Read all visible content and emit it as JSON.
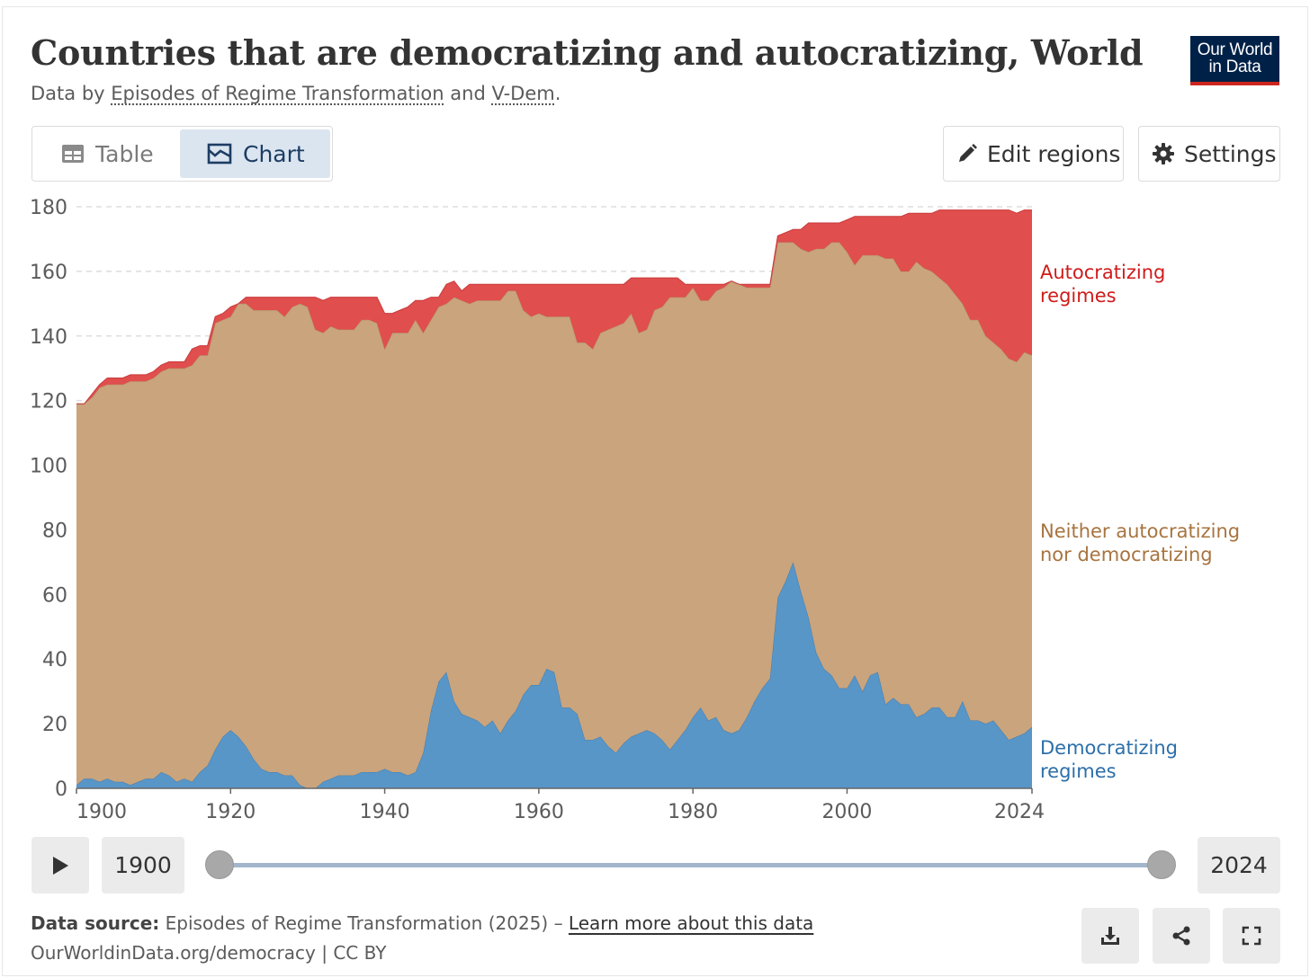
{
  "header": {
    "title": "Countries that are democratizing and autocratizing, World",
    "subtitle_prefix": "Data by ",
    "subtitle_link1": "Episodes of Regime Transformation",
    "subtitle_and": " and ",
    "subtitle_link2": "V-Dem",
    "subtitle_suffix": ".",
    "logo_line1": "Our World",
    "logo_line2": "in Data"
  },
  "tabs": {
    "table_label": "Table",
    "chart_label": "Chart",
    "active": "chart"
  },
  "actions": {
    "edit_regions_label": "Edit regions",
    "settings_label": "Settings"
  },
  "timeline": {
    "start_year": "1900",
    "end_year": "2024"
  },
  "footer": {
    "source_label": "Data source:",
    "source_text": " Episodes of Regime Transformation (2025) – ",
    "learn_more": "Learn more about this data",
    "url_line": "OurWorldinData.org/democracy | CC BY"
  },
  "icons": [
    "table-icon",
    "chart-icon",
    "pencil-icon",
    "gear-icon",
    "play-icon",
    "download-icon",
    "share-icon",
    "fullscreen-icon"
  ],
  "colors": {
    "autocratizing": "#e04e4e",
    "neither": "#c9a47c",
    "democratizing": "#5896c8",
    "grid": "#dddddd",
    "accent": "#1d3d63"
  },
  "chart_data": {
    "type": "area",
    "stacked": true,
    "title": "Countries that are democratizing and autocratizing, World",
    "x": [
      1900,
      1901,
      1902,
      1903,
      1904,
      1905,
      1906,
      1907,
      1908,
      1909,
      1910,
      1911,
      1912,
      1913,
      1914,
      1915,
      1916,
      1917,
      1918,
      1919,
      1920,
      1921,
      1922,
      1923,
      1924,
      1925,
      1926,
      1927,
      1928,
      1929,
      1930,
      1931,
      1932,
      1933,
      1934,
      1935,
      1936,
      1937,
      1938,
      1939,
      1940,
      1941,
      1942,
      1943,
      1944,
      1945,
      1946,
      1947,
      1948,
      1949,
      1950,
      1951,
      1952,
      1953,
      1954,
      1955,
      1956,
      1957,
      1958,
      1959,
      1960,
      1961,
      1962,
      1963,
      1964,
      1965,
      1966,
      1967,
      1968,
      1969,
      1970,
      1971,
      1972,
      1973,
      1974,
      1975,
      1976,
      1977,
      1978,
      1979,
      1980,
      1981,
      1982,
      1983,
      1984,
      1985,
      1986,
      1987,
      1988,
      1989,
      1990,
      1991,
      1992,
      1993,
      1994,
      1995,
      1996,
      1997,
      1998,
      1999,
      2000,
      2001,
      2002,
      2003,
      2004,
      2005,
      2006,
      2007,
      2008,
      2009,
      2010,
      2011,
      2012,
      2013,
      2014,
      2015,
      2016,
      2017,
      2018,
      2019,
      2020,
      2021,
      2022,
      2023,
      2024
    ],
    "series": [
      {
        "name": "Democratizing regimes",
        "values": [
          1,
          3,
          3,
          2,
          3,
          2,
          2,
          1,
          2,
          3,
          3,
          5,
          4,
          2,
          3,
          2,
          5,
          7,
          12,
          16,
          18,
          16,
          13,
          9,
          6,
          5,
          5,
          4,
          4,
          1,
          0,
          0,
          2,
          3,
          4,
          4,
          4,
          5,
          5,
          5,
          6,
          5,
          5,
          4,
          5,
          11,
          24,
          33,
          36,
          27,
          23,
          22,
          21,
          19,
          21,
          17,
          21,
          24,
          29,
          32,
          32,
          37,
          36,
          25,
          25,
          23,
          15,
          15,
          16,
          13,
          11,
          14,
          16,
          17,
          18,
          17,
          15,
          12,
          15,
          18,
          22,
          25,
          21,
          22,
          18,
          17,
          18,
          22,
          27,
          31,
          34,
          59,
          64,
          70,
          61,
          53,
          42,
          37,
          35,
          31,
          31,
          35,
          30,
          35,
          36,
          26,
          28,
          26,
          26,
          22,
          23,
          25,
          25,
          22,
          22,
          27,
          21,
          21,
          20,
          21,
          18,
          15,
          16,
          17,
          19
        ],
        "ylabel_text": "Democratizing regimes"
      },
      {
        "name": "Neither autocratizing nor democratizing",
        "values": [
          118,
          116,
          118,
          122,
          122,
          123,
          123,
          125,
          124,
          123,
          124,
          124,
          126,
          128,
          127,
          129,
          129,
          127,
          132,
          129,
          128,
          134,
          137,
          139,
          142,
          143,
          143,
          142,
          145,
          149,
          149,
          142,
          139,
          140,
          138,
          138,
          138,
          140,
          140,
          139,
          130,
          136,
          136,
          137,
          140,
          130,
          121,
          116,
          114,
          125,
          128,
          128,
          130,
          132,
          130,
          134,
          133,
          130,
          119,
          114,
          115,
          109,
          110,
          121,
          121,
          115,
          123,
          121,
          125,
          129,
          132,
          130,
          131,
          124,
          124,
          131,
          134,
          140,
          137,
          134,
          133,
          126,
          130,
          132,
          137,
          140,
          138,
          133,
          128,
          124,
          121,
          110,
          105,
          99,
          106,
          113,
          125,
          130,
          134,
          138,
          135,
          127,
          135,
          130,
          129,
          138,
          136,
          134,
          134,
          141,
          138,
          135,
          133,
          134,
          131,
          123,
          124,
          124,
          120,
          117,
          118,
          118,
          116,
          118,
          115
        ]
      },
      {
        "name": "Autocratizing regimes",
        "values": [
          0,
          0,
          1,
          1,
          2,
          2,
          2,
          2,
          2,
          2,
          2,
          2,
          2,
          2,
          2,
          5,
          3,
          3,
          2,
          2,
          3,
          0,
          2,
          4,
          4,
          4,
          4,
          6,
          3,
          2,
          3,
          10,
          10,
          9,
          10,
          10,
          10,
          7,
          7,
          8,
          11,
          6,
          7,
          8,
          6,
          10,
          7,
          3,
          6,
          5,
          3,
          6,
          5,
          5,
          5,
          5,
          2,
          2,
          8,
          10,
          9,
          10,
          10,
          10,
          10,
          18,
          18,
          20,
          15,
          14,
          13,
          12,
          11,
          17,
          16,
          10,
          9,
          6,
          6,
          4,
          1,
          5,
          5,
          2,
          1,
          0,
          0,
          1,
          1,
          1,
          1,
          2,
          3,
          4,
          6,
          9,
          8,
          8,
          6,
          6,
          10,
          15,
          12,
          12,
          12,
          13,
          13,
          17,
          18,
          15,
          17,
          18,
          21,
          23,
          26,
          29,
          34,
          34,
          39,
          41,
          43,
          46,
          46,
          44,
          45
        ]
      }
    ],
    "legend": [
      "Autocratizing regimes",
      "Neither autocratizing nor democratizing",
      "Democratizing regimes"
    ],
    "legend_placement": "right, inline labels",
    "xticks": [
      1900,
      1920,
      1940,
      1960,
      1980,
      2000,
      2024
    ],
    "yticks": [
      0,
      20,
      40,
      60,
      80,
      100,
      120,
      140,
      160,
      180
    ],
    "xlim": [
      1900,
      2024
    ],
    "ylim": [
      0,
      180
    ],
    "grid": true,
    "xlabel": "",
    "ylabel": ""
  }
}
